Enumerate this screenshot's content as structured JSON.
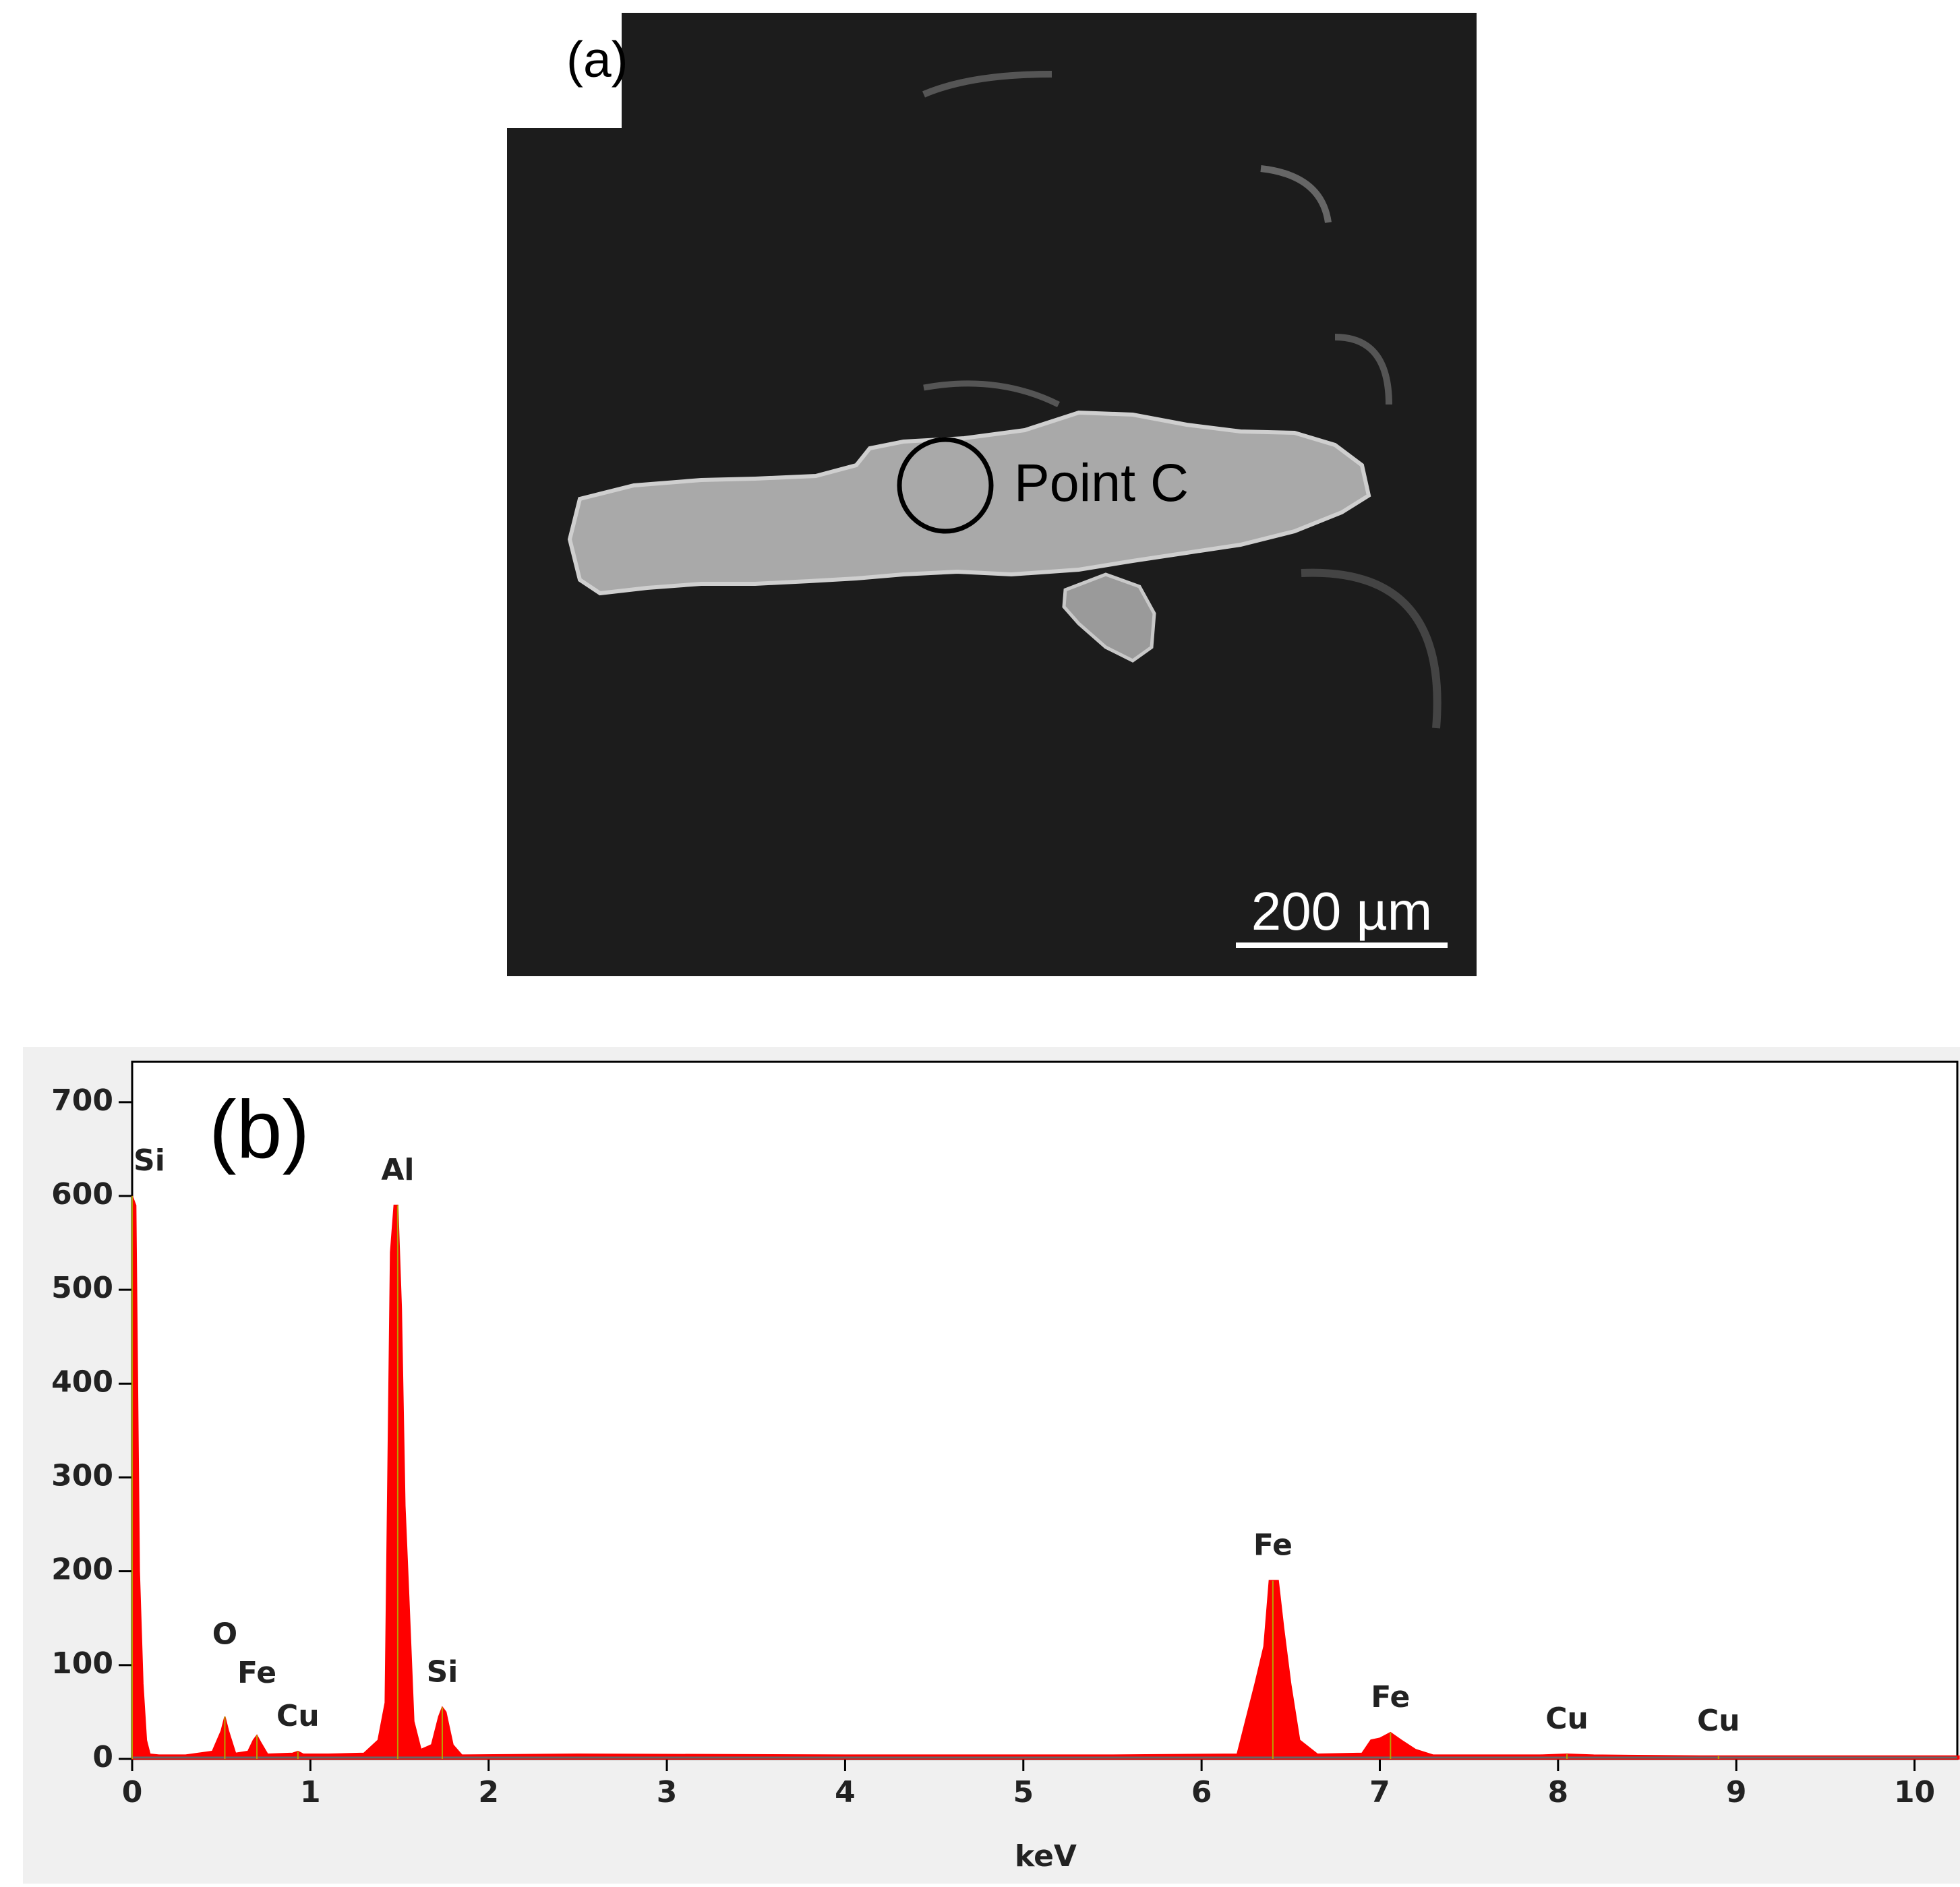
{
  "figure_a": {
    "label": "(a)",
    "annotation": "Point C",
    "scale_bar": "200 µm"
  },
  "chart_data": {
    "type": "area",
    "title": "(b)",
    "x_label": "keV",
    "color": "#ff0000",
    "x": [
      0,
      0.02,
      0.04,
      0.06,
      0.08,
      0.1,
      0.15,
      0.3,
      0.45,
      0.5,
      0.52,
      0.54,
      0.58,
      0.65,
      0.68,
      0.7,
      0.72,
      0.76,
      0.9,
      0.93,
      0.96,
      1.1,
      1.3,
      1.38,
      1.42,
      1.45,
      1.47,
      1.49,
      1.51,
      1.53,
      1.55,
      1.58,
      1.62,
      1.68,
      1.72,
      1.74,
      1.76,
      1.8,
      1.85,
      2.5,
      4,
      5.5,
      6.2,
      6.3,
      6.35,
      6.38,
      6.4,
      6.43,
      6.46,
      6.5,
      6.55,
      6.65,
      6.9,
      6.95,
      7.0,
      7.06,
      7.12,
      7.2,
      7.3,
      7.9,
      8.05,
      8.2,
      8.8,
      8.9,
      9.0,
      10.25
    ],
    "values": [
      600,
      590,
      200,
      80,
      20,
      5,
      4,
      4,
      8,
      30,
      45,
      30,
      6,
      8,
      20,
      25,
      18,
      5,
      6,
      8,
      5,
      5,
      6,
      20,
      60,
      540,
      590,
      590,
      480,
      270,
      180,
      40,
      10,
      15,
      45,
      55,
      50,
      15,
      4,
      5,
      4,
      4,
      5,
      80,
      120,
      190,
      190,
      190,
      140,
      80,
      20,
      5,
      6,
      20,
      22,
      28,
      20,
      10,
      4,
      4,
      5,
      4,
      3,
      3,
      3,
      3
    ],
    "xlim": [
      0,
      10.24
    ],
    "ylim": [
      0,
      743
    ],
    "xticks": [
      0,
      1,
      2,
      3,
      4,
      5,
      6,
      7,
      8,
      9,
      10
    ],
    "yticks": [
      0,
      100,
      200,
      300,
      400,
      500,
      600,
      700
    ],
    "annotations": [
      {
        "text": "Si",
        "x": 0
      },
      {
        "text": "O",
        "x": 0.52
      },
      {
        "text": "Fe",
        "x": 0.7
      },
      {
        "text": "Cu",
        "x": 0.93
      },
      {
        "text": "Al",
        "x": 1.49
      },
      {
        "text": "Si",
        "x": 1.74
      },
      {
        "text": "Fe",
        "x": 6.4
      },
      {
        "text": "Fe",
        "x": 7.06
      },
      {
        "text": "Cu",
        "x": 8.05
      },
      {
        "text": "Cu",
        "x": 8.9
      }
    ]
  }
}
